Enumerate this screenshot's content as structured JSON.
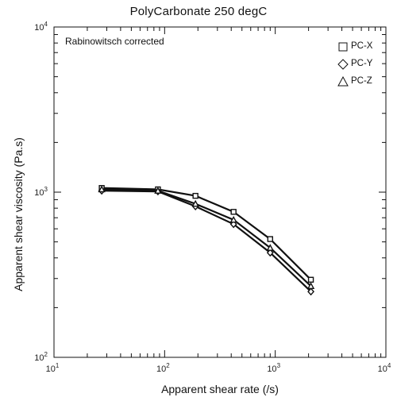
{
  "chart_data": {
    "type": "line",
    "title": "PolyCarbonate 250 degC",
    "xlabel": "Apparent shear rate (/s)",
    "ylabel": "Apparent shear viscosity (Pa.s)",
    "xscale": "log",
    "yscale": "log",
    "xlim": [
      10,
      10000
    ],
    "ylim": [
      100,
      10000
    ],
    "x_ticks": [
      {
        "value": 10,
        "base": "10",
        "exp": "1"
      },
      {
        "value": 100,
        "base": "10",
        "exp": "2"
      },
      {
        "value": 1000,
        "base": "10",
        "exp": "3"
      },
      {
        "value": 10000,
        "base": "10",
        "exp": "4"
      }
    ],
    "y_ticks": [
      {
        "value": 100,
        "base": "10",
        "exp": "2"
      },
      {
        "value": 1000,
        "base": "10",
        "exp": "3"
      },
      {
        "value": 10000,
        "base": "10",
        "exp": "4"
      }
    ],
    "annotation": "Rabinowitsch corrected",
    "grid": false,
    "legend_position": "top-right",
    "series": [
      {
        "name": "PC-X",
        "marker": "square",
        "x": [
          27,
          87,
          190,
          420,
          900,
          2100
        ],
        "y": [
          1060,
          1040,
          950,
          760,
          520,
          295
        ]
      },
      {
        "name": "PC-Y",
        "marker": "diamond",
        "x": [
          27,
          87,
          190,
          420,
          900,
          2100
        ],
        "y": [
          1020,
          1010,
          820,
          640,
          430,
          250
        ]
      },
      {
        "name": "PC-Z",
        "marker": "triangle",
        "x": [
          27,
          87,
          190,
          420,
          900,
          2100
        ],
        "y": [
          1040,
          1020,
          850,
          680,
          460,
          270
        ]
      }
    ]
  }
}
